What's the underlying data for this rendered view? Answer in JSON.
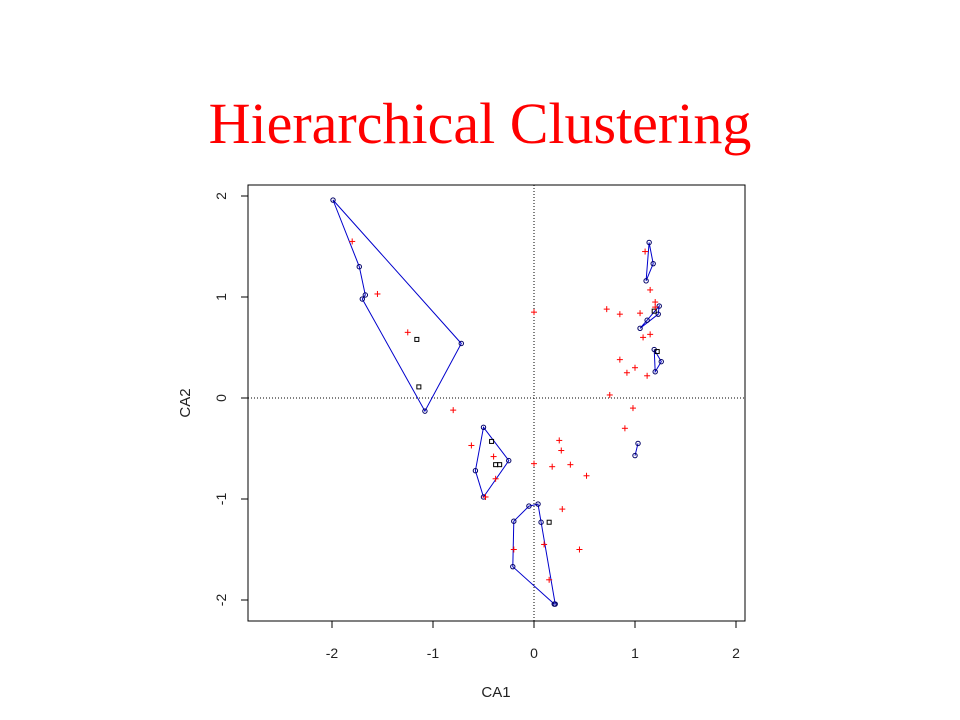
{
  "slide": {
    "title": "Hierarchical Clustering",
    "title_color": "#ff0000"
  },
  "chart_data": {
    "type": "scatter",
    "title": "",
    "xlabel": "CA1",
    "ylabel": "CA2",
    "xlim": [
      -2.8,
      2.1
    ],
    "ylim": [
      -2.2,
      2.12
    ],
    "xticks": [
      -2,
      -1,
      0,
      1,
      2
    ],
    "yticks": [
      -2,
      -1,
      0,
      1,
      2
    ],
    "reference_lines": {
      "x": 0,
      "y": 0,
      "style": "dotted"
    },
    "colors": {
      "points": "#ff0000",
      "hull": "#0000cc",
      "member_marker": "#000066",
      "axes": "#000000"
    },
    "series": [
      {
        "marker": "plus",
        "points": [
          [
            -1.8,
            1.55
          ],
          [
            -1.55,
            1.03
          ],
          [
            -1.25,
            0.65
          ],
          [
            -0.8,
            -0.12
          ],
          [
            0.0,
            0.85
          ],
          [
            -0.62,
            -0.47
          ],
          [
            -0.4,
            -0.58
          ],
          [
            -0.38,
            -0.8
          ],
          [
            0.0,
            -0.65
          ],
          [
            0.18,
            -0.68
          ],
          [
            0.25,
            -0.42
          ],
          [
            0.27,
            -0.52
          ],
          [
            0.36,
            -0.66
          ],
          [
            0.52,
            -0.77
          ],
          [
            -0.2,
            -1.5
          ],
          [
            0.1,
            -1.45
          ],
          [
            0.28,
            -1.1
          ],
          [
            0.45,
            -1.5
          ],
          [
            0.15,
            -1.8
          ],
          [
            0.72,
            0.88
          ],
          [
            0.85,
            0.83
          ],
          [
            1.05,
            0.84
          ],
          [
            1.1,
            1.45
          ],
          [
            1.15,
            1.07
          ],
          [
            1.2,
            0.95
          ],
          [
            1.2,
            0.9
          ],
          [
            1.08,
            0.6
          ],
          [
            1.15,
            0.63
          ],
          [
            0.85,
            0.38
          ],
          [
            0.92,
            0.25
          ],
          [
            1.0,
            0.3
          ],
          [
            1.12,
            0.22
          ],
          [
            0.75,
            0.03
          ],
          [
            0.98,
            -0.1
          ],
          [
            0.9,
            -0.3
          ],
          [
            -0.48,
            -0.98
          ]
        ]
      }
    ],
    "clusters": [
      {
        "hull": [
          [
            -1.99,
            1.96
          ],
          [
            -1.73,
            1.3
          ],
          [
            -1.67,
            1.02
          ],
          [
            -1.7,
            0.98
          ],
          [
            -1.08,
            -0.13
          ],
          [
            -0.72,
            0.54
          ]
        ],
        "members": [
          [
            -1.16,
            0.58
          ],
          [
            -1.14,
            0.11
          ]
        ]
      },
      {
        "hull": [
          [
            -0.5,
            -0.29
          ],
          [
            -0.25,
            -0.62
          ],
          [
            -0.5,
            -0.98
          ],
          [
            -0.58,
            -0.72
          ]
        ],
        "members": [
          [
            -0.42,
            -0.43
          ],
          [
            -0.38,
            -0.66
          ],
          [
            -0.34,
            -0.66
          ]
        ]
      },
      {
        "hull": [
          [
            -0.05,
            -1.07
          ],
          [
            0.04,
            -1.05
          ],
          [
            0.07,
            -1.23
          ],
          [
            0.21,
            -2.04
          ],
          [
            0.2,
            -2.04
          ],
          [
            -0.21,
            -1.67
          ],
          [
            -0.2,
            -1.22
          ]
        ],
        "members": [
          [
            0.15,
            -1.23
          ]
        ]
      },
      {
        "hull": [
          [
            1.14,
            1.54
          ],
          [
            1.18,
            1.33
          ],
          [
            1.11,
            1.16
          ]
        ],
        "members": []
      },
      {
        "hull": [
          [
            1.24,
            0.91
          ],
          [
            1.23,
            0.83
          ],
          [
            1.05,
            0.69
          ],
          [
            1.12,
            0.77
          ]
        ],
        "members": [
          [
            1.19,
            0.86
          ]
        ]
      },
      {
        "hull": [
          [
            1.19,
            0.48
          ],
          [
            1.26,
            0.36
          ],
          [
            1.2,
            0.26
          ]
        ],
        "members": [
          [
            1.22,
            0.46
          ]
        ]
      },
      {
        "hull": [
          [
            1.03,
            -0.45
          ],
          [
            1.0,
            -0.57
          ]
        ],
        "members": []
      }
    ]
  }
}
